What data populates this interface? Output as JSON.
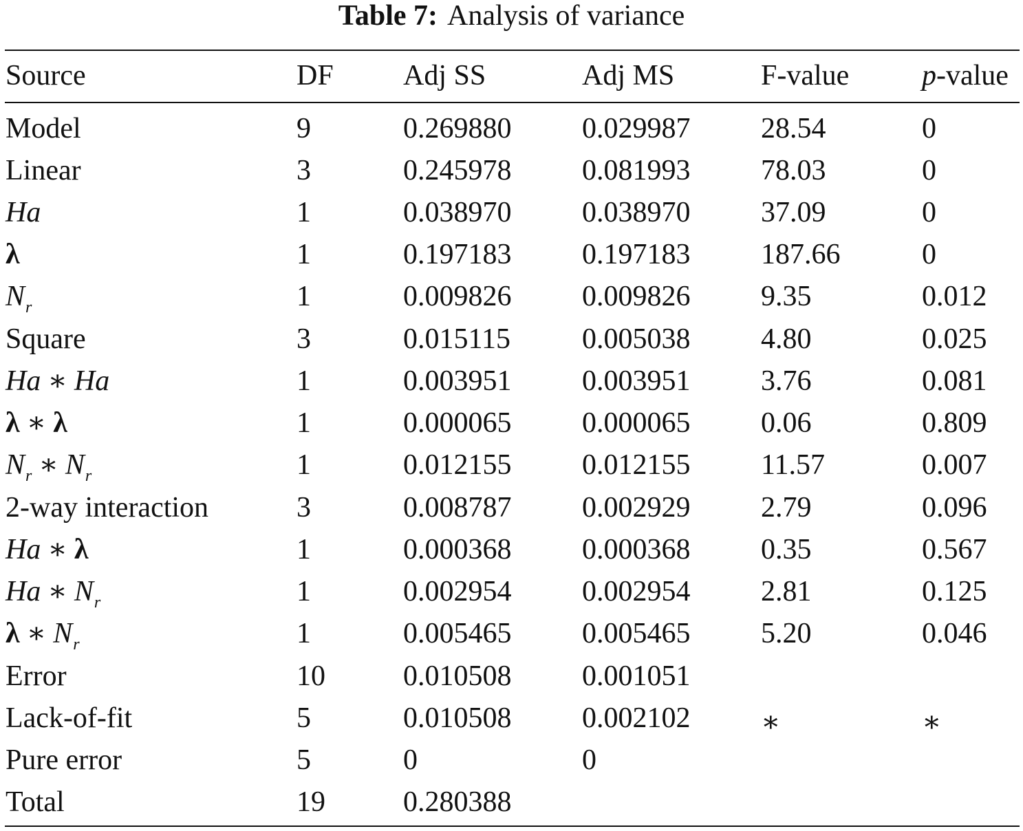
{
  "caption": {
    "label": "Table 7:",
    "title": "Analysis of variance"
  },
  "header": {
    "source": "Source",
    "df": "DF",
    "adj_ss": "Adj SS",
    "adj_ms": "Adj MS",
    "f_value": "F-value",
    "p_value_p": "p",
    "p_value_rest": "-value"
  },
  "symbols": {
    "ha": "Ha",
    "lambda": "λ",
    "n": "N",
    "r": "r",
    "times": "∗"
  },
  "rows": [
    {
      "source": "Model",
      "df": "9",
      "adj_ss": "0.269880",
      "adj_ms": "0.029987",
      "f_value": "28.54",
      "p_value": "0"
    },
    {
      "source": "Linear",
      "df": "3",
      "adj_ss": "0.245978",
      "adj_ms": "0.081993",
      "f_value": "78.03",
      "p_value": "0"
    },
    {
      "source": "Ha",
      "df": "1",
      "adj_ss": "0.038970",
      "adj_ms": "0.038970",
      "f_value": "37.09",
      "p_value": "0"
    },
    {
      "source": "λ",
      "df": "1",
      "adj_ss": "0.197183",
      "adj_ms": "0.197183",
      "f_value": "187.66",
      "p_value": "0"
    },
    {
      "source": "Nr",
      "df": "1",
      "adj_ss": "0.009826",
      "adj_ms": "0.009826",
      "f_value": "9.35",
      "p_value": "0.012"
    },
    {
      "source": "Square",
      "df": "3",
      "adj_ss": "0.015115",
      "adj_ms": "0.005038",
      "f_value": "4.80",
      "p_value": "0.025"
    },
    {
      "source": "Ha ∗ Ha",
      "df": "1",
      "adj_ss": "0.003951",
      "adj_ms": "0.003951",
      "f_value": "3.76",
      "p_value": "0.081"
    },
    {
      "source": "λ ∗ λ",
      "df": "1",
      "adj_ss": "0.000065",
      "adj_ms": "0.000065",
      "f_value": "0.06",
      "p_value": "0.809"
    },
    {
      "source": "Nr ∗ Nr",
      "df": "1",
      "adj_ss": "0.012155",
      "adj_ms": "0.012155",
      "f_value": "11.57",
      "p_value": "0.007"
    },
    {
      "source": "2-way interaction",
      "df": "3",
      "adj_ss": "0.008787",
      "adj_ms": "0.002929",
      "f_value": "2.79",
      "p_value": "0.096"
    },
    {
      "source": "Ha ∗ λ",
      "df": "1",
      "adj_ss": "0.000368",
      "adj_ms": "0.000368",
      "f_value": "0.35",
      "p_value": "0.567"
    },
    {
      "source": "Ha ∗ Nr",
      "df": "1",
      "adj_ss": "0.002954",
      "adj_ms": "0.002954",
      "f_value": "2.81",
      "p_value": "0.125"
    },
    {
      "source": "λ ∗ Nr",
      "df": "1",
      "adj_ss": "0.005465",
      "adj_ms": "0.005465",
      "f_value": "5.20",
      "p_value": "0.046"
    },
    {
      "source": "Error",
      "df": "10",
      "adj_ss": "0.010508",
      "adj_ms": "0.001051",
      "f_value": "",
      "p_value": ""
    },
    {
      "source": "Lack-of-fit",
      "df": "5",
      "adj_ss": "0.010508",
      "adj_ms": "0.002102",
      "f_value": "∗",
      "p_value": "∗"
    },
    {
      "source": "Pure error",
      "df": "5",
      "adj_ss": "0",
      "adj_ms": "0",
      "f_value": "",
      "p_value": ""
    },
    {
      "source": "Total",
      "df": "19",
      "adj_ss": "0.280388",
      "adj_ms": "",
      "f_value": "",
      "p_value": ""
    }
  ]
}
